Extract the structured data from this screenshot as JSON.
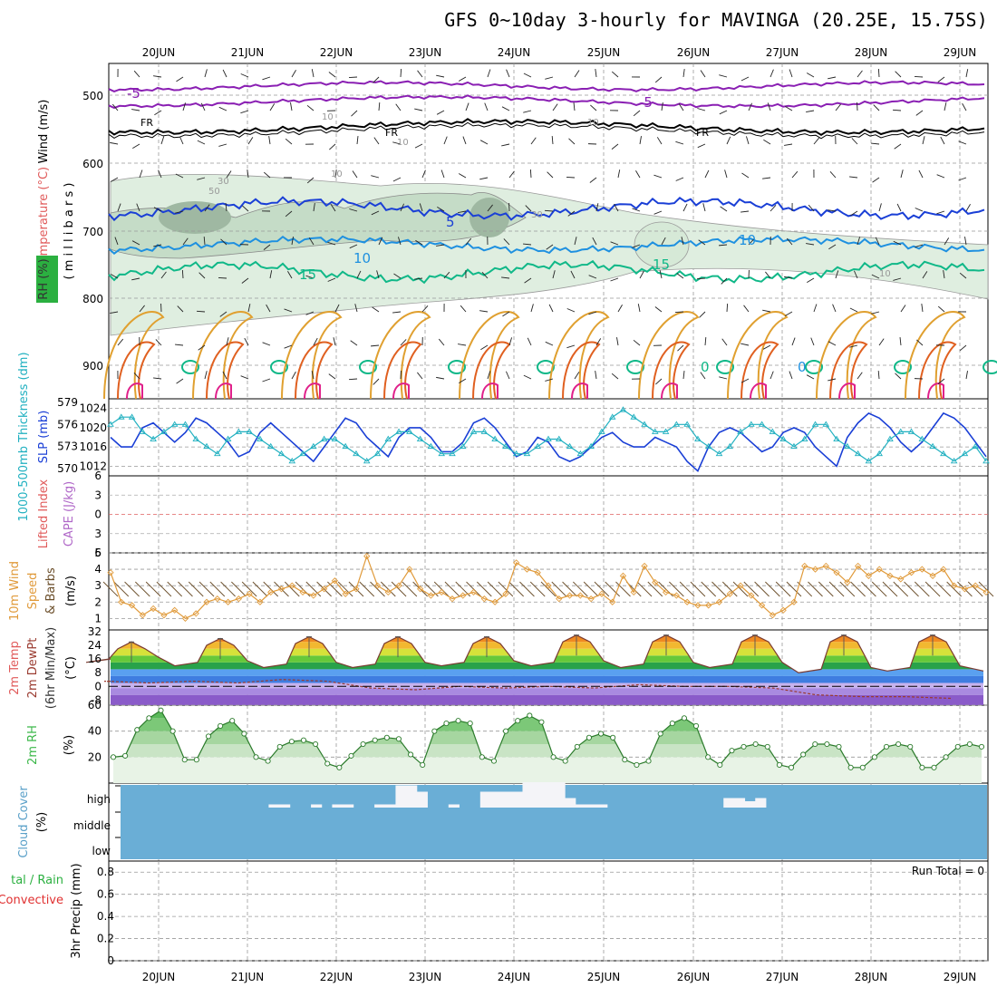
{
  "title": "GFS 0~10day 3-hourly for MAVINGA (20.25E, 15.75S)",
  "date_labels": [
    "20JUN",
    "21JUN",
    "22JUN",
    "23JUN",
    "24JUN",
    "25JUN",
    "26JUN",
    "27JUN",
    "28JUN",
    "29JUN"
  ],
  "colors": {
    "purple": "#8a1fb3",
    "blue": "#1a3fd6",
    "lightblue": "#1e90e0",
    "teal": "#10b888",
    "orange": "#e0a030",
    "darkorange": "#e06020",
    "magenta": "#e0208a",
    "slp": "#1a3fd6",
    "thick": "#20b0c0",
    "wind": "#e09a3a",
    "rh": "#3cb84a",
    "cloud": "#6aaed6"
  },
  "upper_panel": {
    "label_wind": "Wind (m/s)",
    "label_temp": "Temperature (°C)",
    "label_rh": "RH (%)",
    "label_millibars": "( m i l l i b a r s )",
    "pressure_ticks": [
      "500",
      "600",
      "700",
      "800",
      "900"
    ],
    "contour_labels": [
      "-5",
      "-5",
      "FR",
      "FR",
      "FR",
      "5",
      "10",
      "10",
      "15",
      "15",
      "0",
      "0",
      "10",
      "30",
      "50",
      "10",
      "10",
      "10",
      "30",
      "10"
    ]
  },
  "slp_panel": {
    "label_left": "1000-500mb Thickness (dm)",
    "label_right": "SLP (mb)",
    "thick_ticks": [
      "579",
      "576",
      "573",
      "570"
    ],
    "slp_ticks": [
      "1024",
      "1020",
      "1016",
      "1012"
    ]
  },
  "cape_panel": {
    "label_li": "Lifted Index",
    "label_cape": "CAPE (J/kg)",
    "ticks": [
      "6",
      "3",
      "0",
      "3",
      "6"
    ]
  },
  "wind_panel": {
    "label_a": "10m Wind",
    "label_b": "Speed",
    "label_c": "& Barbs",
    "label_unit": "(m/s)",
    "ticks": [
      "5",
      "4",
      "3",
      "2",
      "1"
    ]
  },
  "temp_panel": {
    "label_a": "2m Temp",
    "label_b": "2m DewPt",
    "label_c": "(6hr Min/Max)",
    "label_unit": "(°C)",
    "ticks": [
      "32",
      "24",
      "16",
      "8",
      "0",
      "-8"
    ]
  },
  "rh_panel": {
    "label_a": "2m RH",
    "label_unit": "(%)",
    "ticks": [
      "60",
      "40",
      "20"
    ]
  },
  "cloud_panel": {
    "label_a": "Cloud Cover",
    "label_unit": "(%)",
    "levels": [
      "high",
      "middle",
      "low"
    ]
  },
  "precip_panel": {
    "label_a": "tal / Rain",
    "label_b": "Convective",
    "label_c": "3hr Precip (mm)",
    "run_total": "Run Total = 0",
    "ticks": [
      "0.8",
      "0.6",
      "0.4",
      "0.2",
      "0"
    ]
  },
  "chart_data": {
    "type": "line",
    "title": "GFS 0~10day 3-hourly for MAVINGA (20.25E, 15.75S)",
    "categories": [
      "20JUN",
      "21JUN",
      "22JUN",
      "23JUN",
      "24JUN",
      "25JUN",
      "26JUN",
      "27JUN",
      "28JUN",
      "29JUN"
    ],
    "time_step_hours": 3,
    "slp_mb": [
      1018,
      1016,
      1016,
      1020,
      1021,
      1019,
      1017,
      1019,
      1022,
      1021,
      1019,
      1017,
      1014,
      1015,
      1019,
      1021,
      1019,
      1017,
      1015,
      1013,
      1016,
      1019,
      1022,
      1021,
      1018,
      1016,
      1014,
      1018,
      1020,
      1020,
      1018,
      1015,
      1015,
      1017,
      1021,
      1022,
      1020,
      1017,
      1014,
      1015,
      1018,
      1017,
      1014,
      1013,
      1014,
      1016,
      1018,
      1019,
      1017,
      1016,
      1016,
      1018,
      1017,
      1016,
      1013,
      1011,
      1016,
      1019,
      1020,
      1019,
      1017,
      1015,
      1016,
      1019,
      1020,
      1019,
      1016,
      1014,
      1012,
      1018,
      1021,
      1023,
      1022,
      1020,
      1017,
      1015,
      1017,
      1020,
      1023,
      1022,
      1020,
      1017,
      1014
    ],
    "thickness_dm": [
      576,
      577,
      577,
      575,
      574,
      575,
      576,
      576,
      574,
      573,
      572,
      574,
      575,
      575,
      574,
      573,
      572,
      571,
      572,
      573,
      574,
      574,
      573,
      572,
      571,
      572,
      574,
      575,
      575,
      574,
      573,
      572,
      572,
      573,
      575,
      575,
      574,
      573,
      572,
      572,
      573,
      574,
      574,
      573,
      572,
      573,
      575,
      577,
      578,
      577,
      576,
      575,
      575,
      576,
      576,
      574,
      573,
      572,
      573,
      575,
      576,
      576,
      575,
      574,
      573,
      574,
      576,
      576,
      574,
      573,
      572,
      571,
      572,
      574,
      575,
      575,
      574,
      573,
      572,
      571,
      572,
      573,
      571
    ],
    "wind_speed_ms": [
      3.8,
      2.0,
      1.8,
      1.2,
      1.6,
      1.2,
      1.5,
      1.0,
      1.3,
      2.0,
      2.2,
      2.0,
      2.2,
      2.5,
      2.0,
      2.6,
      2.8,
      3.0,
      2.6,
      2.4,
      2.8,
      3.3,
      2.5,
      2.8,
      4.8,
      3.0,
      2.6,
      3.0,
      4.0,
      2.8,
      2.4,
      2.6,
      2.2,
      2.4,
      2.6,
      2.2,
      2.0,
      2.5,
      4.4,
      4.0,
      3.8,
      3.0,
      2.2,
      2.4,
      2.4,
      2.2,
      2.5,
      2.0,
      3.6,
      2.6,
      4.2,
      3.2,
      2.6,
      2.4,
      2.0,
      1.8,
      1.8,
      2.0,
      2.5,
      3.0,
      2.4,
      1.8,
      1.2,
      1.5,
      2.0,
      4.2,
      4.0,
      4.2,
      3.8,
      3.2,
      4.2,
      3.6,
      4.0,
      3.6,
      3.4,
      3.8,
      4.0,
      3.6,
      4.0,
      3.0,
      2.8,
      3.0,
      2.6
    ],
    "temp_max_c": [
      26,
      28,
      29,
      29,
      29,
      30,
      30,
      30,
      30,
      30
    ],
    "temp_min_c": [
      14,
      12,
      11,
      11,
      12,
      12,
      11,
      11,
      8,
      9
    ],
    "dewpoint_c": [
      3,
      3,
      4,
      -1,
      0,
      0,
      1,
      0,
      -5,
      -6
    ],
    "rh_pct": [
      20,
      21,
      41,
      50,
      56,
      40,
      18,
      18,
      36,
      44,
      48,
      38,
      20,
      17,
      28,
      32,
      33,
      30,
      15,
      12,
      21,
      30,
      33,
      35,
      34,
      22,
      14,
      40,
      46,
      48,
      46,
      20,
      17,
      40,
      48,
      52,
      47,
      20,
      17,
      28,
      35,
      38,
      35,
      18,
      14,
      17,
      38,
      46,
      50,
      44,
      20,
      14,
      25,
      28,
      30,
      28,
      14,
      12,
      22,
      30,
      30,
      28,
      12,
      12,
      20,
      28,
      30,
      28,
      12,
      12,
      20,
      28,
      30,
      28
    ],
    "cloud_high_pct": [
      0,
      0,
      0,
      0,
      0,
      0,
      0,
      0,
      0,
      0,
      0,
      0,
      0,
      0,
      5,
      5,
      0,
      0,
      5,
      0,
      5,
      5,
      0,
      0,
      5,
      5,
      35,
      35,
      25,
      0,
      0,
      5,
      0,
      0,
      25,
      25,
      25,
      25,
      40,
      40,
      40,
      40,
      15,
      5,
      5,
      5,
      0,
      0,
      0,
      0,
      0,
      0,
      0,
      0,
      0,
      0,
      0,
      15,
      15,
      10,
      15,
      0,
      0,
      0,
      0,
      0,
      0,
      0,
      0,
      0,
      0,
      0,
      0,
      0,
      0,
      0,
      0,
      0,
      0,
      0,
      0,
      0,
      0
    ],
    "precip_mm": [
      0
    ],
    "ylim_precip": [
      0,
      0.8
    ]
  }
}
